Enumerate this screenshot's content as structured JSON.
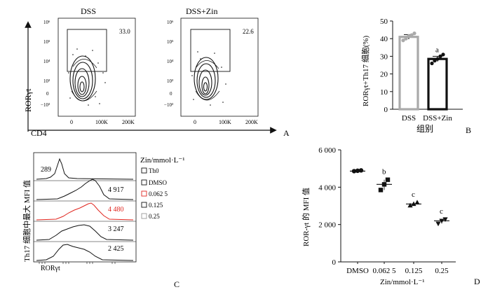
{
  "chart_data": [
    {
      "type": "scatter",
      "panel_label": "A",
      "plots": [
        {
          "title": "DSS",
          "gate_value": "33.0"
        },
        {
          "title": "DSS+Zin",
          "gate_value": "22.6"
        }
      ],
      "ylabel": "RORγt",
      "xlabel": "CD4",
      "x_ticks": [
        "0",
        "100K",
        "200K"
      ],
      "y_ticks": [
        "10⁶",
        "10⁵",
        "10⁴",
        "10³",
        "0",
        "−10³"
      ]
    },
    {
      "type": "bar",
      "panel_label": "B",
      "categories": [
        "DSS",
        "DSS+Zin"
      ],
      "values": [
        41,
        28.5
      ],
      "errors": [
        1.3,
        1.5
      ],
      "points": [
        [
          39,
          40,
          41.5,
          42,
          43
        ],
        [
          26,
          27.5,
          28.5,
          30,
          31
        ]
      ],
      "significance": [
        "",
        "a"
      ],
      "colors": [
        "#aaaaaa",
        "#111111"
      ],
      "ylabel": "RORγt+Th17 细胞(%)",
      "xlabel": "组别",
      "ylim": [
        0,
        50
      ],
      "y_ticks": [
        "0",
        "10",
        "20",
        "30",
        "40",
        "50"
      ]
    },
    {
      "type": "area",
      "panel_label": "C",
      "xlabel": "RORγt",
      "ylabel": "Th17 细胞中最大 MFI 值",
      "legend_title": "Zin/mmol·L⁻¹",
      "series": [
        {
          "name": "Th0",
          "mfi": "289",
          "color": "#111111"
        },
        {
          "name": "DMSO",
          "mfi": "4 917",
          "color": "#111111"
        },
        {
          "name": "0.062 5",
          "mfi": "4 480",
          "color": "#e0261f"
        },
        {
          "name": "0.125",
          "mfi": "3 247",
          "color": "#111111"
        },
        {
          "name": "0.25",
          "mfi": "2 425",
          "color": "#111111"
        }
      ]
    },
    {
      "type": "scatter",
      "panel_label": "D",
      "categories": [
        "DMSO",
        "0.062 5",
        "0.125",
        "0.25"
      ],
      "values": [
        4860,
        4150,
        3100,
        2200
      ],
      "points": [
        [
          4860,
          4880,
          4900
        ],
        [
          3850,
          4150,
          4400
        ],
        [
          3020,
          3100,
          3180
        ],
        [
          2050,
          2200,
          2280
        ]
      ],
      "markers": [
        "circle",
        "square",
        "triangle-up",
        "triangle-down"
      ],
      "significance": [
        "",
        "b",
        "c",
        "c"
      ],
      "ylabel": "ROR-γt 的 MFI 值",
      "xlabel": "Zin/mmol·L⁻¹",
      "ylim": [
        0,
        6000
      ],
      "y_ticks": [
        "0",
        "2 000",
        "4 000",
        "6 000"
      ]
    }
  ]
}
